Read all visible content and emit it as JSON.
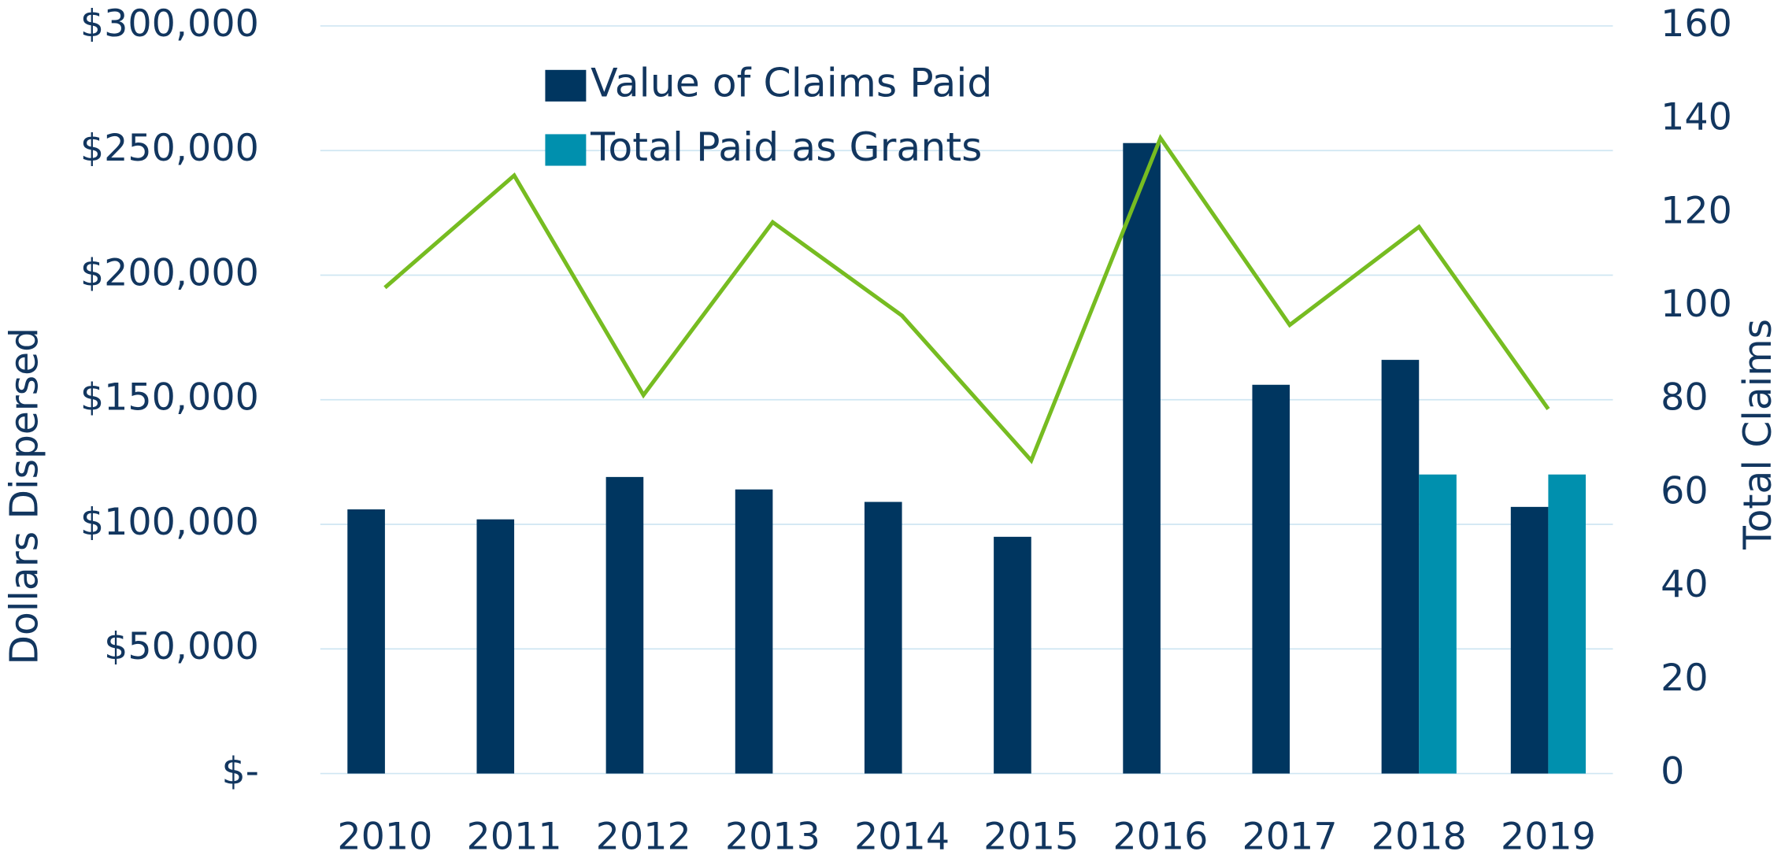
{
  "chart_data": {
    "type": "bar",
    "categories": [
      "2010",
      "2011",
      "2012",
      "2013",
      "2014",
      "2015",
      "2016",
      "2017",
      "2018",
      "2019"
    ],
    "series": [
      {
        "name": "Value of Claims Paid",
        "type": "bar",
        "color": "#003660",
        "values": [
          106000,
          102000,
          119000,
          114000,
          109000,
          95000,
          253000,
          156000,
          166000,
          107000
        ]
      },
      {
        "name": "Total Paid as Grants",
        "type": "bar",
        "color": "#0090ae",
        "values": [
          null,
          null,
          null,
          null,
          null,
          null,
          null,
          null,
          120000,
          120000
        ]
      },
      {
        "type": "line",
        "axis": "y2",
        "color": "#76bc21",
        "values": [
          104,
          128,
          81,
          118,
          98,
          67,
          136,
          96,
          117,
          78
        ]
      }
    ],
    "ylabel": "Dollars Dispersed",
    "y2label": "Total Claims",
    "ylim": [
      0,
      300000
    ],
    "yticks": [
      {
        "value": 0,
        "label": "$-"
      },
      {
        "value": 50000,
        "label": "$50,000"
      },
      {
        "value": 100000,
        "label": "$100,000"
      },
      {
        "value": 150000,
        "label": "$150,000"
      },
      {
        "value": 200000,
        "label": "$200,000"
      },
      {
        "value": 250000,
        "label": "$250,000"
      },
      {
        "value": 300000,
        "label": "$300,000"
      }
    ],
    "y2lim": [
      0,
      160
    ],
    "y2ticks": [
      0,
      20,
      40,
      60,
      80,
      100,
      120,
      140,
      160
    ],
    "grid": true,
    "legend": "top"
  }
}
